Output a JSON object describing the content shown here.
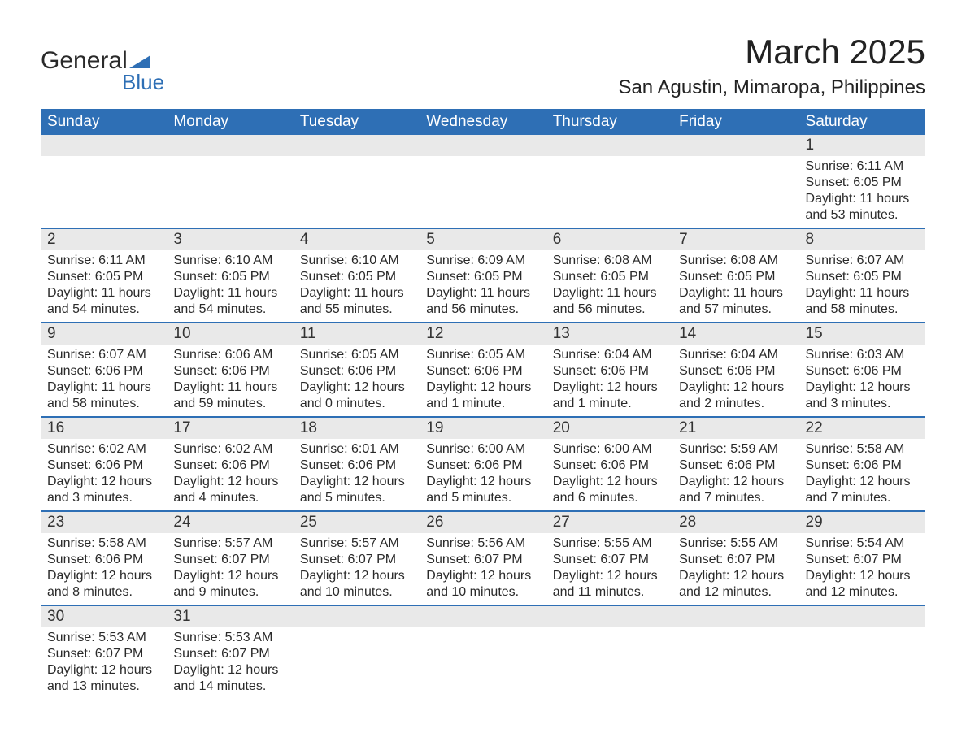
{
  "logo": {
    "word1": "General",
    "word2": "Blue",
    "triangle_color": "#2e6fb5"
  },
  "title": "March 2025",
  "location": "San Agustin, Mimaropa, Philippines",
  "colors": {
    "header_bg": "#2e6fb5",
    "header_text": "#ffffff",
    "daynum_bg": "#e9e9e9",
    "row_divider": "#2e6fb5",
    "body_text": "#2a2a2a"
  },
  "font": {
    "family": "Arial",
    "title_size_pt": 32,
    "location_size_pt": 18,
    "header_size_pt": 14,
    "body_size_pt": 12
  },
  "day_headers": [
    "Sunday",
    "Monday",
    "Tuesday",
    "Wednesday",
    "Thursday",
    "Friday",
    "Saturday"
  ],
  "weeks": [
    [
      {
        "day": "",
        "lines": []
      },
      {
        "day": "",
        "lines": []
      },
      {
        "day": "",
        "lines": []
      },
      {
        "day": "",
        "lines": []
      },
      {
        "day": "",
        "lines": []
      },
      {
        "day": "",
        "lines": []
      },
      {
        "day": "1",
        "lines": [
          "Sunrise: 6:11 AM",
          "Sunset: 6:05 PM",
          "Daylight: 11 hours and 53 minutes."
        ]
      }
    ],
    [
      {
        "day": "2",
        "lines": [
          "Sunrise: 6:11 AM",
          "Sunset: 6:05 PM",
          "Daylight: 11 hours and 54 minutes."
        ]
      },
      {
        "day": "3",
        "lines": [
          "Sunrise: 6:10 AM",
          "Sunset: 6:05 PM",
          "Daylight: 11 hours and 54 minutes."
        ]
      },
      {
        "day": "4",
        "lines": [
          "Sunrise: 6:10 AM",
          "Sunset: 6:05 PM",
          "Daylight: 11 hours and 55 minutes."
        ]
      },
      {
        "day": "5",
        "lines": [
          "Sunrise: 6:09 AM",
          "Sunset: 6:05 PM",
          "Daylight: 11 hours and 56 minutes."
        ]
      },
      {
        "day": "6",
        "lines": [
          "Sunrise: 6:08 AM",
          "Sunset: 6:05 PM",
          "Daylight: 11 hours and 56 minutes."
        ]
      },
      {
        "day": "7",
        "lines": [
          "Sunrise: 6:08 AM",
          "Sunset: 6:05 PM",
          "Daylight: 11 hours and 57 minutes."
        ]
      },
      {
        "day": "8",
        "lines": [
          "Sunrise: 6:07 AM",
          "Sunset: 6:05 PM",
          "Daylight: 11 hours and 58 minutes."
        ]
      }
    ],
    [
      {
        "day": "9",
        "lines": [
          "Sunrise: 6:07 AM",
          "Sunset: 6:06 PM",
          "Daylight: 11 hours and 58 minutes."
        ]
      },
      {
        "day": "10",
        "lines": [
          "Sunrise: 6:06 AM",
          "Sunset: 6:06 PM",
          "Daylight: 11 hours and 59 minutes."
        ]
      },
      {
        "day": "11",
        "lines": [
          "Sunrise: 6:05 AM",
          "Sunset: 6:06 PM",
          "Daylight: 12 hours and 0 minutes."
        ]
      },
      {
        "day": "12",
        "lines": [
          "Sunrise: 6:05 AM",
          "Sunset: 6:06 PM",
          "Daylight: 12 hours and 1 minute."
        ]
      },
      {
        "day": "13",
        "lines": [
          "Sunrise: 6:04 AM",
          "Sunset: 6:06 PM",
          "Daylight: 12 hours and 1 minute."
        ]
      },
      {
        "day": "14",
        "lines": [
          "Sunrise: 6:04 AM",
          "Sunset: 6:06 PM",
          "Daylight: 12 hours and 2 minutes."
        ]
      },
      {
        "day": "15",
        "lines": [
          "Sunrise: 6:03 AM",
          "Sunset: 6:06 PM",
          "Daylight: 12 hours and 3 minutes."
        ]
      }
    ],
    [
      {
        "day": "16",
        "lines": [
          "Sunrise: 6:02 AM",
          "Sunset: 6:06 PM",
          "Daylight: 12 hours and 3 minutes."
        ]
      },
      {
        "day": "17",
        "lines": [
          "Sunrise: 6:02 AM",
          "Sunset: 6:06 PM",
          "Daylight: 12 hours and 4 minutes."
        ]
      },
      {
        "day": "18",
        "lines": [
          "Sunrise: 6:01 AM",
          "Sunset: 6:06 PM",
          "Daylight: 12 hours and 5 minutes."
        ]
      },
      {
        "day": "19",
        "lines": [
          "Sunrise: 6:00 AM",
          "Sunset: 6:06 PM",
          "Daylight: 12 hours and 5 minutes."
        ]
      },
      {
        "day": "20",
        "lines": [
          "Sunrise: 6:00 AM",
          "Sunset: 6:06 PM",
          "Daylight: 12 hours and 6 minutes."
        ]
      },
      {
        "day": "21",
        "lines": [
          "Sunrise: 5:59 AM",
          "Sunset: 6:06 PM",
          "Daylight: 12 hours and 7 minutes."
        ]
      },
      {
        "day": "22",
        "lines": [
          "Sunrise: 5:58 AM",
          "Sunset: 6:06 PM",
          "Daylight: 12 hours and 7 minutes."
        ]
      }
    ],
    [
      {
        "day": "23",
        "lines": [
          "Sunrise: 5:58 AM",
          "Sunset: 6:06 PM",
          "Daylight: 12 hours and 8 minutes."
        ]
      },
      {
        "day": "24",
        "lines": [
          "Sunrise: 5:57 AM",
          "Sunset: 6:07 PM",
          "Daylight: 12 hours and 9 minutes."
        ]
      },
      {
        "day": "25",
        "lines": [
          "Sunrise: 5:57 AM",
          "Sunset: 6:07 PM",
          "Daylight: 12 hours and 10 minutes."
        ]
      },
      {
        "day": "26",
        "lines": [
          "Sunrise: 5:56 AM",
          "Sunset: 6:07 PM",
          "Daylight: 12 hours and 10 minutes."
        ]
      },
      {
        "day": "27",
        "lines": [
          "Sunrise: 5:55 AM",
          "Sunset: 6:07 PM",
          "Daylight: 12 hours and 11 minutes."
        ]
      },
      {
        "day": "28",
        "lines": [
          "Sunrise: 5:55 AM",
          "Sunset: 6:07 PM",
          "Daylight: 12 hours and 12 minutes."
        ]
      },
      {
        "day": "29",
        "lines": [
          "Sunrise: 5:54 AM",
          "Sunset: 6:07 PM",
          "Daylight: 12 hours and 12 minutes."
        ]
      }
    ],
    [
      {
        "day": "30",
        "lines": [
          "Sunrise: 5:53 AM",
          "Sunset: 6:07 PM",
          "Daylight: 12 hours and 13 minutes."
        ]
      },
      {
        "day": "31",
        "lines": [
          "Sunrise: 5:53 AM",
          "Sunset: 6:07 PM",
          "Daylight: 12 hours and 14 minutes."
        ]
      },
      {
        "day": "",
        "lines": []
      },
      {
        "day": "",
        "lines": []
      },
      {
        "day": "",
        "lines": []
      },
      {
        "day": "",
        "lines": []
      },
      {
        "day": "",
        "lines": []
      }
    ]
  ]
}
